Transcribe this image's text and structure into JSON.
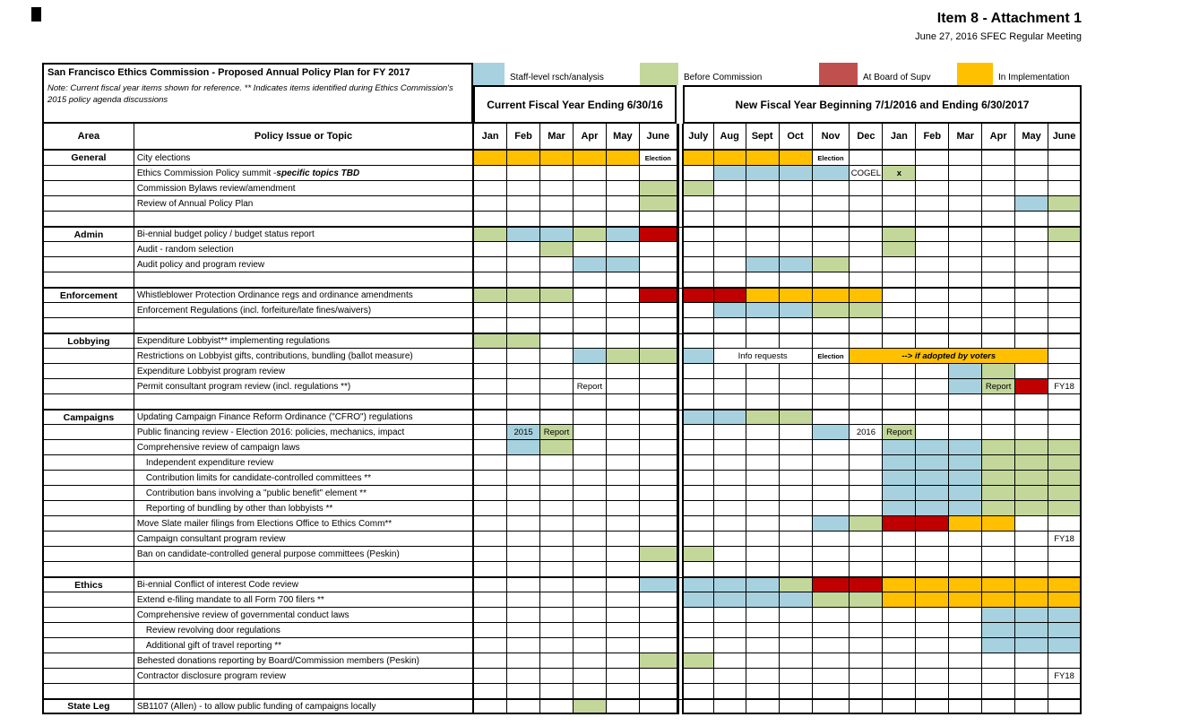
{
  "header": {
    "attachment_title": "Item 8 - Attachment 1",
    "meeting_subtitle": "June 27, 2016 SFEC Regular Meeting"
  },
  "title_box": {
    "title": "San Francisco Ethics Commission - Proposed Annual Policy Plan for FY 2017",
    "note": "Note: Current fiscal year items shown for reference.  ** Indicates items identified during Ethics Commission's 2015 policy agenda discussions"
  },
  "legend": [
    {
      "label": "Staff-level rsch/analysis",
      "color": "#A8D1DF"
    },
    {
      "label": "Before Commission",
      "color": "#C4D79B"
    },
    {
      "label": "At Board of Supv",
      "color": "#C0504D"
    },
    {
      "label": "In Implementation",
      "color": "#FFC000"
    }
  ],
  "colors": {
    "B": "#A8D1DF",
    "G": "#C4D79B",
    "O": "#FFC000",
    "R": "#C00000",
    "legend_red": "#C0504D",
    "border": "#000000"
  },
  "columns": {
    "area": "Area",
    "topic": "Policy Issue or Topic",
    "current_fy": "Current Fiscal Year Ending 6/30/16",
    "new_fy": "New Fiscal Year Beginning 7/1/2016 and Ending 6/30/2017",
    "months_current": [
      "Jan",
      "Feb",
      "Mar",
      "Apr",
      "May",
      "June"
    ],
    "months_new": [
      "July",
      "Aug",
      "Sept",
      "Oct",
      "Nov",
      "Dec",
      "Jan",
      "Feb",
      "Mar",
      "Apr",
      "May",
      "June"
    ]
  },
  "rows": [
    {
      "area": "General",
      "topic": "City elections",
      "cells": [
        {
          "i": 0,
          "c": "O"
        },
        {
          "i": 1,
          "c": "O"
        },
        {
          "i": 2,
          "c": "O"
        },
        {
          "i": 3,
          "c": "O"
        },
        {
          "i": 4,
          "c": "O"
        },
        {
          "i": 5,
          "t": "Election",
          "sm": 1
        },
        {
          "i": 6,
          "c": "O"
        },
        {
          "i": 7,
          "c": "O"
        },
        {
          "i": 8,
          "c": "O"
        },
        {
          "i": 9,
          "c": "O"
        },
        {
          "i": 10,
          "t": "Election",
          "sm": 1
        }
      ]
    },
    {
      "area": "",
      "topic": "Ethics Commission Policy summit - ",
      "em": "specific topics TBD",
      "cells": [
        {
          "i": 7,
          "c": "B"
        },
        {
          "i": 8,
          "c": "B"
        },
        {
          "i": 9,
          "c": "B"
        },
        {
          "i": 10,
          "c": "B"
        },
        {
          "i": 11,
          "t": "COGEL"
        },
        {
          "i": 12,
          "c": "G",
          "t": "x",
          "b": 1
        }
      ]
    },
    {
      "area": "",
      "topic": "Commission Bylaws review/amendment",
      "cells": [
        {
          "i": 5,
          "c": "G"
        },
        {
          "i": 6,
          "c": "G"
        }
      ]
    },
    {
      "area": "",
      "topic": "Review of Annual Policy Plan",
      "cells": [
        {
          "i": 5,
          "c": "G"
        },
        {
          "i": 16,
          "c": "B"
        },
        {
          "i": 17,
          "c": "G"
        }
      ]
    },
    {
      "area": "",
      "topic": "",
      "cells": []
    },
    {
      "area": "Admin",
      "topic": "Bi-ennial budget policy / budget status report",
      "sec": true,
      "cells": [
        {
          "i": 0,
          "c": "G"
        },
        {
          "i": 1,
          "c": "B"
        },
        {
          "i": 2,
          "c": "B"
        },
        {
          "i": 3,
          "c": "G"
        },
        {
          "i": 4,
          "c": "B"
        },
        {
          "i": 5,
          "c": "R"
        },
        {
          "i": 12,
          "c": "G"
        },
        {
          "i": 17,
          "c": "G"
        }
      ]
    },
    {
      "area": "",
      "topic": "Audit - random selection",
      "cells": [
        {
          "i": 2,
          "c": "G"
        },
        {
          "i": 12,
          "c": "G"
        }
      ]
    },
    {
      "area": "",
      "topic": "Audit policy and program review",
      "cells": [
        {
          "i": 3,
          "c": "B"
        },
        {
          "i": 4,
          "c": "B"
        },
        {
          "i": 8,
          "c": "B"
        },
        {
          "i": 9,
          "c": "B"
        },
        {
          "i": 10,
          "c": "G"
        }
      ]
    },
    {
      "area": "",
      "topic": "",
      "cells": []
    },
    {
      "area": "Enforcement",
      "topic": "Whistleblower Protection Ordinance regs and ordinance amendments",
      "sec": true,
      "cells": [
        {
          "i": 0,
          "c": "G"
        },
        {
          "i": 1,
          "c": "G"
        },
        {
          "i": 2,
          "c": "G"
        },
        {
          "i": 5,
          "c": "R"
        },
        {
          "i": 6,
          "c": "R"
        },
        {
          "i": 7,
          "c": "R"
        },
        {
          "i": 8,
          "c": "O"
        },
        {
          "i": 9,
          "c": "O"
        },
        {
          "i": 10,
          "c": "O"
        },
        {
          "i": 11,
          "c": "O"
        }
      ]
    },
    {
      "area": "",
      "topic": "Enforcement Regulations (incl. forfeiture/late fines/waivers)",
      "cells": [
        {
          "i": 7,
          "c": "B"
        },
        {
          "i": 8,
          "c": "B"
        },
        {
          "i": 9,
          "c": "B"
        },
        {
          "i": 10,
          "c": "G"
        },
        {
          "i": 11,
          "c": "G"
        }
      ]
    },
    {
      "area": "",
      "topic": "",
      "cells": []
    },
    {
      "area": "Lobbying",
      "topic": "Expenditure Lobbyist** implementing regulations",
      "sec": true,
      "cells": [
        {
          "i": 0,
          "c": "G"
        },
        {
          "i": 1,
          "c": "G"
        }
      ]
    },
    {
      "area": "",
      "topic": "Restrictions on Lobbyist gifts, contributions, bundling (ballot measure)",
      "cells": [
        {
          "i": 3,
          "c": "B"
        },
        {
          "i": 4,
          "c": "G"
        },
        {
          "i": 5,
          "c": "G"
        },
        {
          "i": 6,
          "c": "B"
        },
        {
          "i": 7,
          "t": "Info requests",
          "s": 3
        },
        {
          "i": 10,
          "t": "Election",
          "sm": 1
        },
        {
          "i": 11,
          "c": "O",
          "t": "-->  if adopted by voters",
          "s": 6,
          "b": 1,
          "em": 1
        }
      ]
    },
    {
      "area": "",
      "topic": "Expenditure Lobbyist program review",
      "cells": [
        {
          "i": 14,
          "c": "B"
        },
        {
          "i": 15,
          "c": "G"
        }
      ]
    },
    {
      "area": "",
      "topic": "Permit consultant program review (incl. regulations **)",
      "cells": [
        {
          "i": 3,
          "t": "Report"
        },
        {
          "i": 14,
          "c": "B"
        },
        {
          "i": 15,
          "c": "G",
          "t": "Report"
        },
        {
          "i": 16,
          "c": "R"
        },
        {
          "i": 17,
          "t": "FY18"
        }
      ]
    },
    {
      "area": "",
      "topic": "",
      "cells": []
    },
    {
      "area": "Campaigns",
      "topic": "Updating Campaign Finance Reform Ordinance (\"CFRO\") regulations",
      "sec": true,
      "cells": [
        {
          "i": 6,
          "c": "B"
        },
        {
          "i": 7,
          "c": "B"
        },
        {
          "i": 8,
          "c": "G"
        },
        {
          "i": 9,
          "c": "G"
        }
      ]
    },
    {
      "area": "",
      "topic": "Public financing review - Election 2016: policies, mechanics, impact",
      "cells": [
        {
          "i": 1,
          "c": "B",
          "t": "2015"
        },
        {
          "i": 2,
          "c": "G",
          "t": "Report"
        },
        {
          "i": 10,
          "c": "B"
        },
        {
          "i": 11,
          "t": "2016"
        },
        {
          "i": 12,
          "c": "G",
          "t": "Report"
        }
      ]
    },
    {
      "area": "",
      "topic": "Comprehensive review of campaign laws",
      "cells": [
        {
          "i": 1,
          "c": "B"
        },
        {
          "i": 2,
          "c": "G"
        },
        {
          "i": 12,
          "c": "B"
        },
        {
          "i": 13,
          "c": "B"
        },
        {
          "i": 14,
          "c": "B"
        },
        {
          "i": 15,
          "c": "G"
        },
        {
          "i": 16,
          "c": "G"
        },
        {
          "i": 17,
          "c": "G"
        }
      ]
    },
    {
      "area": "",
      "topic": "Independent expenditure review",
      "ind": true,
      "cells": [
        {
          "i": 12,
          "c": "B"
        },
        {
          "i": 13,
          "c": "B"
        },
        {
          "i": 14,
          "c": "B"
        },
        {
          "i": 15,
          "c": "G"
        },
        {
          "i": 16,
          "c": "G"
        },
        {
          "i": 17,
          "c": "G"
        }
      ]
    },
    {
      "area": "",
      "topic": "Contribution limits for candidate-controlled committees **",
      "ind": true,
      "cells": [
        {
          "i": 12,
          "c": "B"
        },
        {
          "i": 13,
          "c": "B"
        },
        {
          "i": 14,
          "c": "B"
        },
        {
          "i": 15,
          "c": "G"
        },
        {
          "i": 16,
          "c": "G"
        },
        {
          "i": 17,
          "c": "G"
        }
      ]
    },
    {
      "area": "",
      "topic": "Contribution bans involving a \"public benefit\" element **",
      "ind": true,
      "cells": [
        {
          "i": 12,
          "c": "B"
        },
        {
          "i": 13,
          "c": "B"
        },
        {
          "i": 14,
          "c": "B"
        },
        {
          "i": 15,
          "c": "G"
        },
        {
          "i": 16,
          "c": "G"
        },
        {
          "i": 17,
          "c": "G"
        }
      ]
    },
    {
      "area": "",
      "topic": "Reporting of bundling by other than lobbyists **",
      "ind": true,
      "cells": [
        {
          "i": 12,
          "c": "B"
        },
        {
          "i": 13,
          "c": "B"
        },
        {
          "i": 14,
          "c": "B"
        },
        {
          "i": 15,
          "c": "G"
        },
        {
          "i": 16,
          "c": "G"
        },
        {
          "i": 17,
          "c": "G"
        }
      ]
    },
    {
      "area": "",
      "topic": "Move Slate mailer filings from Elections Office to Ethics Comm**",
      "cells": [
        {
          "i": 10,
          "c": "B"
        },
        {
          "i": 11,
          "c": "G"
        },
        {
          "i": 12,
          "c": "R"
        },
        {
          "i": 13,
          "c": "R"
        },
        {
          "i": 14,
          "c": "O"
        },
        {
          "i": 15,
          "c": "O"
        }
      ]
    },
    {
      "area": "",
      "topic": "Campaign consultant program review",
      "cells": [
        {
          "i": 17,
          "t": "FY18"
        }
      ]
    },
    {
      "area": "",
      "topic": "Ban on candidate-controlled general purpose committees (Peskin)",
      "cells": [
        {
          "i": 5,
          "c": "G"
        },
        {
          "i": 6,
          "c": "G"
        }
      ]
    },
    {
      "area": "",
      "topic": "",
      "cells": []
    },
    {
      "area": "Ethics",
      "topic": "Bi-ennial Conflict of interest Code review",
      "sec": true,
      "cells": [
        {
          "i": 5,
          "c": "B"
        },
        {
          "i": 6,
          "c": "B"
        },
        {
          "i": 7,
          "c": "B"
        },
        {
          "i": 8,
          "c": "B"
        },
        {
          "i": 9,
          "c": "G"
        },
        {
          "i": 10,
          "c": "R"
        },
        {
          "i": 11,
          "c": "R"
        },
        {
          "i": 12,
          "c": "O"
        },
        {
          "i": 13,
          "c": "O"
        },
        {
          "i": 14,
          "c": "O"
        },
        {
          "i": 15,
          "c": "O"
        },
        {
          "i": 16,
          "c": "O"
        },
        {
          "i": 17,
          "c": "O"
        }
      ]
    },
    {
      "area": "",
      "topic": "Extend e-filing mandate to all Form 700 filers **",
      "cells": [
        {
          "i": 6,
          "c": "B"
        },
        {
          "i": 7,
          "c": "B"
        },
        {
          "i": 8,
          "c": "B"
        },
        {
          "i": 9,
          "c": "B"
        },
        {
          "i": 10,
          "c": "G"
        },
        {
          "i": 11,
          "c": "G"
        },
        {
          "i": 12,
          "c": "O"
        },
        {
          "i": 13,
          "c": "O"
        },
        {
          "i": 14,
          "c": "O"
        },
        {
          "i": 15,
          "c": "O"
        },
        {
          "i": 16,
          "c": "O"
        },
        {
          "i": 17,
          "c": "O"
        }
      ]
    },
    {
      "area": "",
      "topic": "Comprehensive review of governmental conduct laws",
      "cells": [
        {
          "i": 15,
          "c": "B"
        },
        {
          "i": 16,
          "c": "B"
        },
        {
          "i": 17,
          "c": "B"
        }
      ]
    },
    {
      "area": "",
      "topic": "Review revolving door regulations",
      "ind": true,
      "cells": [
        {
          "i": 15,
          "c": "B"
        },
        {
          "i": 16,
          "c": "B"
        },
        {
          "i": 17,
          "c": "B"
        }
      ]
    },
    {
      "area": "",
      "topic": "Additional gift of travel reporting **",
      "ind": true,
      "cells": [
        {
          "i": 15,
          "c": "B"
        },
        {
          "i": 16,
          "c": "B"
        },
        {
          "i": 17,
          "c": "B"
        }
      ]
    },
    {
      "area": "",
      "topic": "Behested donations reporting by Board/Commission members (Peskin)",
      "cells": [
        {
          "i": 5,
          "c": "G"
        },
        {
          "i": 6,
          "c": "G"
        }
      ]
    },
    {
      "area": "",
      "topic": "Contractor disclosure program review",
      "cells": [
        {
          "i": 17,
          "t": "FY18"
        }
      ]
    },
    {
      "area": "",
      "topic": "",
      "cells": []
    },
    {
      "area": "State Leg",
      "topic": "SB1107 (Allen) - to allow public funding of campaigns locally",
      "sec": true,
      "cells": [
        {
          "i": 3,
          "c": "G"
        }
      ]
    }
  ]
}
